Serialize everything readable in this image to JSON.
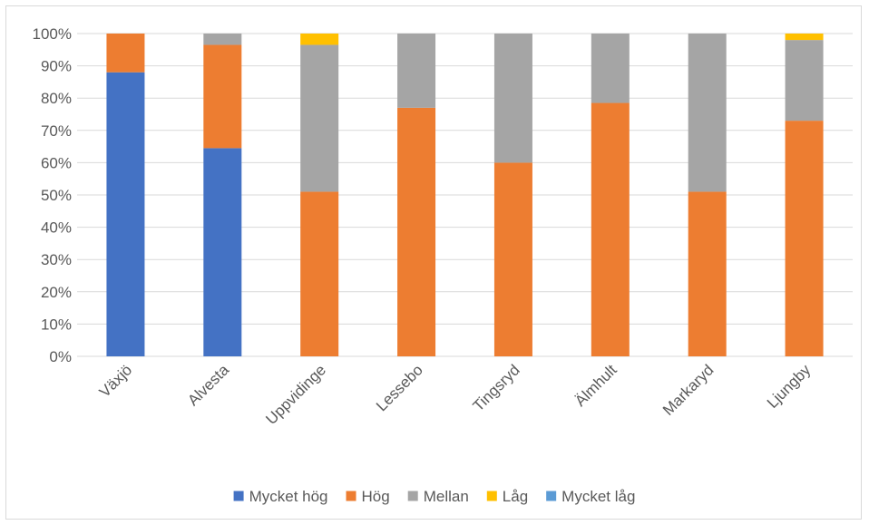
{
  "chart_data": {
    "type": "bar",
    "stacked": true,
    "percent": true,
    "title": "",
    "xlabel": "",
    "ylabel": "",
    "ylim": [
      0,
      100
    ],
    "y_ticks": [
      "0%",
      "10%",
      "20%",
      "30%",
      "40%",
      "50%",
      "60%",
      "70%",
      "80%",
      "90%",
      "100%"
    ],
    "grid": true,
    "legend_position": "bottom",
    "categories": [
      "Växjö",
      "Alvesta",
      "Uppvidinge",
      "Lessebo",
      "Tingsryd",
      "Älmhult",
      "Markaryd",
      "Ljungby"
    ],
    "series": [
      {
        "name": "Mycket hög",
        "color": "#4472C4",
        "values": [
          88,
          64.5,
          0,
          0,
          0,
          0,
          0,
          0
        ]
      },
      {
        "name": "Hög",
        "color": "#ED7D31",
        "values": [
          12,
          32,
          51,
          77,
          60,
          78.5,
          51,
          73
        ]
      },
      {
        "name": "Mellan",
        "color": "#A5A5A5",
        "values": [
          0,
          3.5,
          45.5,
          23,
          40,
          21.5,
          49,
          25
        ]
      },
      {
        "name": "Låg",
        "color": "#FFC000",
        "values": [
          0,
          0,
          3.5,
          0,
          0,
          0,
          0,
          2
        ]
      },
      {
        "name": "Mycket låg",
        "color": "#5B9BD5",
        "values": [
          0,
          0,
          0,
          0,
          0,
          0,
          0,
          0
        ]
      }
    ]
  }
}
